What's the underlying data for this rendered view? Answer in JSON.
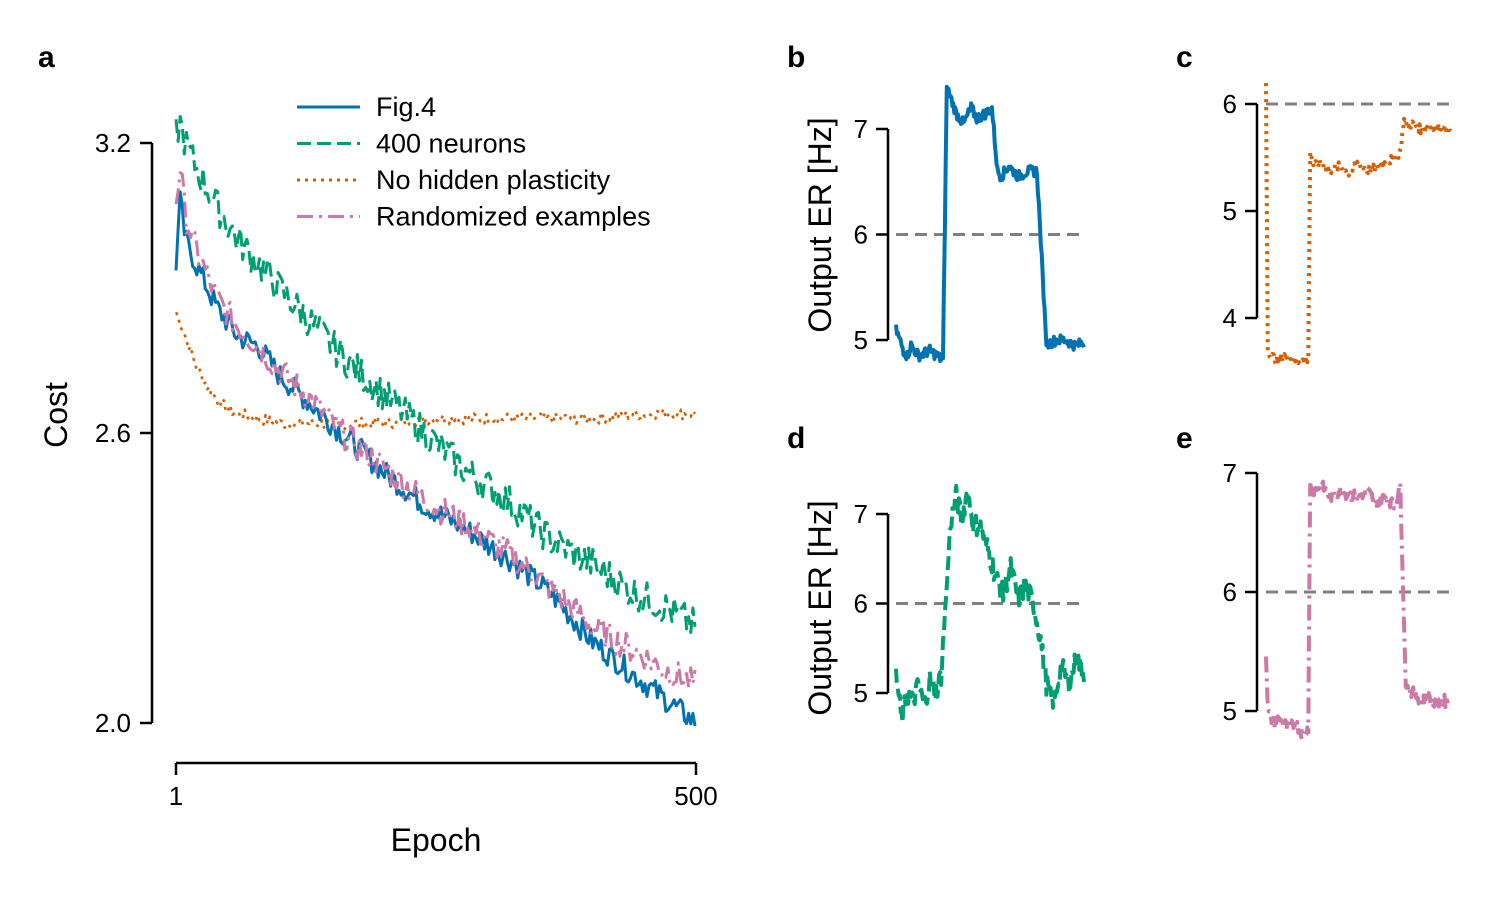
{
  "colors": {
    "blue": "#0072b2",
    "green": "#009e73",
    "orange": "#d55e00",
    "pink": "#cc79a7",
    "ref": "#808080"
  },
  "chart_data": [
    {
      "panel": "a",
      "type": "line",
      "xlabel": "Epoch",
      "ylabel": "Cost",
      "xlim": [
        1,
        500
      ],
      "ylim": [
        1.92,
        3.32
      ],
      "xticks": [
        1,
        500
      ],
      "xtick_labels": [
        "1",
        "500"
      ],
      "yticks": [
        2.0,
        2.6,
        3.2
      ],
      "ytick_labels": [
        "2.0",
        "2.6",
        "3.2"
      ],
      "legend_position": "top-right",
      "series": [
        {
          "name": "Fig.4",
          "style": "solid",
          "color": "#0072b2",
          "x": [
            1,
            5,
            10,
            20,
            40,
            60,
            80,
            100,
            130,
            160,
            200,
            240,
            280,
            320,
            360,
            400,
            440,
            470,
            500
          ],
          "y": [
            2.95,
            3.08,
            3.0,
            2.95,
            2.86,
            2.8,
            2.78,
            2.72,
            2.66,
            2.6,
            2.52,
            2.45,
            2.4,
            2.34,
            2.27,
            2.17,
            2.1,
            2.05,
            2.0
          ]
        },
        {
          "name": "400 neurons",
          "style": "dashed",
          "color": "#009e73",
          "x": [
            1,
            5,
            10,
            20,
            40,
            60,
            80,
            100,
            130,
            160,
            200,
            240,
            280,
            320,
            360,
            400,
            440,
            470,
            500
          ],
          "y": [
            3.22,
            3.24,
            3.2,
            3.15,
            3.07,
            3.0,
            2.95,
            2.9,
            2.83,
            2.76,
            2.68,
            2.6,
            2.52,
            2.46,
            2.38,
            2.33,
            2.27,
            2.24,
            2.2
          ]
        },
        {
          "name": "No hidden plasticity",
          "style": "dotted",
          "color": "#d55e00",
          "x": [
            1,
            5,
            10,
            15,
            20,
            30,
            40,
            50,
            60,
            80,
            100,
            130,
            160,
            200,
            250,
            300,
            350,
            400,
            450,
            500
          ],
          "y": [
            2.85,
            2.83,
            2.8,
            2.77,
            2.74,
            2.7,
            2.67,
            2.65,
            2.64,
            2.63,
            2.62,
            2.62,
            2.62,
            2.62,
            2.63,
            2.63,
            2.63,
            2.63,
            2.64,
            2.64
          ]
        },
        {
          "name": "Randomized examples",
          "style": "dashdot",
          "color": "#cc79a7",
          "x": [
            1,
            5,
            10,
            20,
            40,
            60,
            80,
            100,
            130,
            160,
            200,
            240,
            280,
            320,
            360,
            400,
            440,
            470,
            500
          ],
          "y": [
            3.08,
            3.15,
            3.05,
            2.98,
            2.88,
            2.82,
            2.78,
            2.73,
            2.67,
            2.6,
            2.53,
            2.46,
            2.41,
            2.35,
            2.28,
            2.2,
            2.15,
            2.11,
            2.08
          ]
        }
      ]
    },
    {
      "panel": "b",
      "type": "line",
      "ylabel": "Output ER [Hz]",
      "ylim": [
        4.7,
        7.55
      ],
      "yticks": [
        5,
        6,
        7
      ],
      "ytick_labels": [
        "5",
        "6",
        "7"
      ],
      "reference_line": 6,
      "series": [
        {
          "style": "solid",
          "color": "#0072b2",
          "x": [
            0,
            0.4,
            0.6,
            0.8,
            1.2,
            1.8,
            2.2,
            2.5,
            2.7,
            3.2,
            3.6,
            4.0,
            4.3,
            4.8,
            5.1,
            5.4,
            5.6,
            6.0,
            6.5,
            7.0,
            7.5,
            8.0,
            8.5,
            9.0,
            9.5,
            10.0
          ],
          "y": [
            5.1,
            4.9,
            4.85,
            4.95,
            4.85,
            4.9,
            4.85,
            4.8,
            7.4,
            7.15,
            7.05,
            7.2,
            7.1,
            7.15,
            7.2,
            6.6,
            6.55,
            6.65,
            6.55,
            6.6,
            6.6,
            4.95,
            5.0,
            5.0,
            4.95,
            4.97
          ]
        }
      ]
    },
    {
      "panel": "c",
      "type": "line",
      "ylim": [
        3.5,
        6.2
      ],
      "yticks": [
        4,
        5,
        6
      ],
      "ytick_labels": [
        "4",
        "5",
        "6"
      ],
      "reference_line": 6,
      "series": [
        {
          "style": "dotted",
          "color": "#d55e00",
          "x": [
            0,
            0.1,
            0.3,
            0.6,
            1.0,
            1.5,
            2.0,
            2.3,
            2.4,
            2.6,
            3.0,
            3.5,
            4.0,
            4.5,
            5.0,
            5.5,
            6.0,
            6.5,
            7.0,
            7.3,
            7.5,
            7.8,
            8.0,
            8.5,
            9.0,
            9.5,
            10.0
          ],
          "y": [
            6.2,
            3.7,
            3.65,
            3.6,
            3.65,
            3.6,
            3.6,
            3.62,
            5.55,
            5.42,
            5.45,
            5.38,
            5.42,
            5.35,
            5.45,
            5.38,
            5.4,
            5.45,
            5.5,
            5.55,
            5.85,
            5.78,
            5.82,
            5.75,
            5.8,
            5.78,
            5.75
          ]
        }
      ]
    },
    {
      "panel": "d",
      "type": "line",
      "ylabel": "Output ER [Hz]",
      "ylim": [
        4.5,
        7.55
      ],
      "yticks": [
        5,
        6,
        7
      ],
      "ytick_labels": [
        "5",
        "6",
        "7"
      ],
      "reference_line": 6,
      "series": [
        {
          "style": "dashed",
          "color": "#009e73",
          "x": [
            0,
            0.3,
            0.6,
            0.9,
            1.2,
            1.5,
            1.8,
            2.1,
            2.4,
            2.7,
            2.9,
            3.2,
            3.5,
            3.8,
            4.1,
            4.5,
            4.9,
            5.3,
            5.7,
            6.1,
            6.5,
            6.9,
            7.3,
            7.7,
            8.0,
            8.4,
            8.8,
            9.2,
            9.6,
            10.0
          ],
          "y": [
            5.2,
            4.7,
            5.0,
            4.9,
            5.1,
            4.85,
            5.15,
            5.0,
            5.2,
            6.2,
            6.9,
            7.2,
            6.95,
            7.25,
            6.9,
            6.85,
            6.6,
            6.3,
            6.1,
            6.4,
            6.05,
            6.2,
            6.0,
            5.6,
            5.1,
            4.9,
            5.3,
            5.1,
            5.4,
            5.2
          ]
        }
      ]
    },
    {
      "panel": "e",
      "type": "line",
      "ylim": [
        4.7,
        7.1
      ],
      "yticks": [
        5,
        6,
        7
      ],
      "ytick_labels": [
        "5",
        "6",
        "7"
      ],
      "reference_line": 6,
      "series": [
        {
          "style": "dashdot",
          "color": "#cc79a7",
          "x": [
            0,
            0.1,
            0.4,
            0.8,
            1.2,
            1.6,
            2.0,
            2.3,
            2.4,
            2.6,
            3.0,
            3.5,
            4.0,
            4.5,
            5.0,
            5.5,
            6.0,
            6.5,
            7.0,
            7.3,
            7.6,
            8.0,
            8.4,
            8.8,
            9.2,
            9.6,
            10.0
          ],
          "y": [
            5.5,
            5.0,
            4.9,
            4.95,
            4.85,
            4.9,
            4.8,
            4.85,
            6.9,
            6.85,
            6.9,
            6.8,
            6.85,
            6.82,
            6.8,
            6.85,
            6.75,
            6.8,
            6.72,
            6.9,
            5.2,
            5.15,
            5.1,
            5.12,
            5.05,
            5.1,
            5.05
          ]
        }
      ]
    }
  ]
}
